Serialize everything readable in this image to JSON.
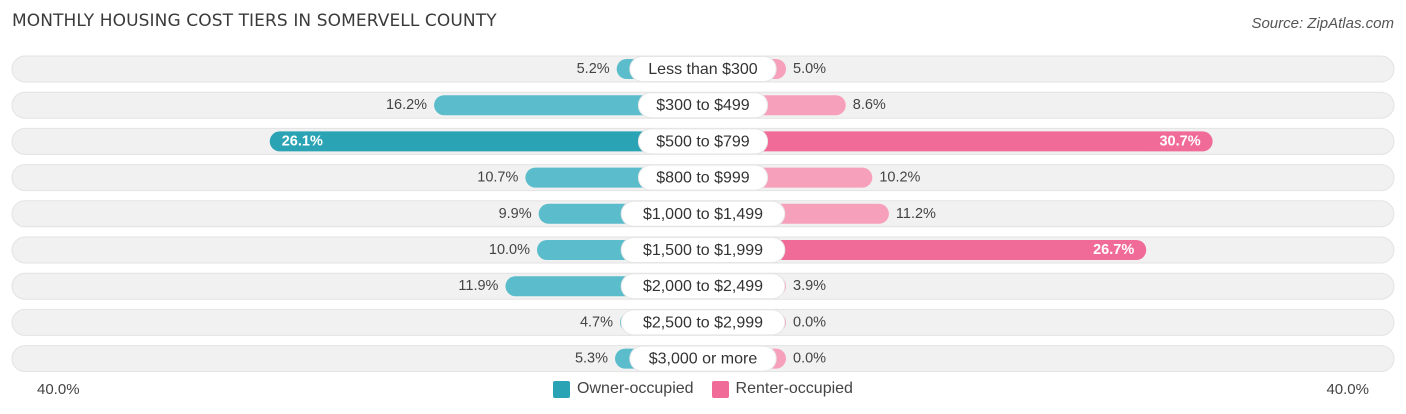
{
  "title": "MONTHLY HOUSING COST TIERS IN SOMERVELL COUNTY",
  "source": "Source: ZipAtlas.com",
  "colors": {
    "owner": "#5bbccb",
    "owner_strong": "#2aa3b5",
    "renter": "#f7a0bb",
    "renter_strong": "#f06b97",
    "track": "#efefef"
  },
  "chart_data": {
    "type": "bar",
    "orientation": "horizontal-diverging",
    "categories": [
      "Less than $300",
      "$300 to $499",
      "$500 to $799",
      "$800 to $999",
      "$1,000 to $1,499",
      "$1,500 to $1,999",
      "$2,000 to $2,499",
      "$2,500 to $2,999",
      "$3,000 or more"
    ],
    "series": [
      {
        "name": "Owner-occupied",
        "values": [
          5.2,
          16.2,
          26.1,
          10.7,
          9.9,
          10.0,
          11.9,
          4.7,
          5.3
        ],
        "labels": [
          "5.2%",
          "16.2%",
          "26.1%",
          "10.7%",
          "9.9%",
          "10.0%",
          "11.9%",
          "4.7%",
          "5.3%"
        ]
      },
      {
        "name": "Renter-occupied",
        "values": [
          5.0,
          8.6,
          30.7,
          10.2,
          11.2,
          26.7,
          3.9,
          0.0,
          0.0
        ],
        "labels": [
          "5.0%",
          "8.6%",
          "30.7%",
          "10.2%",
          "11.2%",
          "26.7%",
          "3.9%",
          "0.0%",
          "0.0%"
        ]
      }
    ],
    "xlim": [
      -40,
      40
    ],
    "axis_left_label": "40.0%",
    "axis_right_label": "40.0%",
    "legend_position": "bottom-center"
  }
}
